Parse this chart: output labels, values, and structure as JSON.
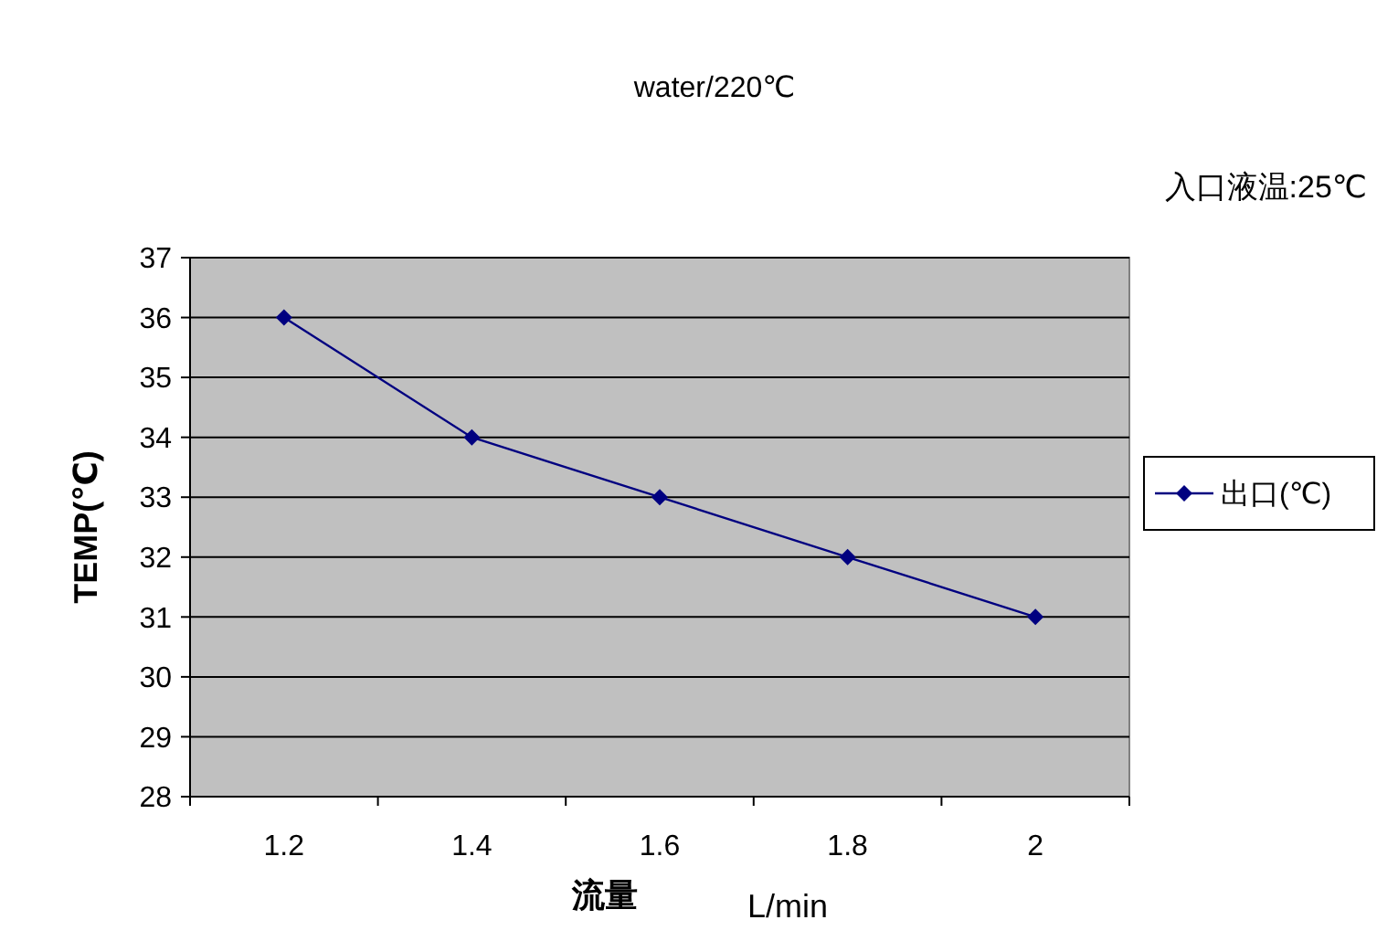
{
  "chart_data": {
    "type": "line",
    "title": "water/220℃",
    "annotations": [
      "入口液温:25℃",
      "L/min"
    ],
    "xlabel": "流量",
    "ylabel": "TEMP(℃)",
    "categories": [
      "1.2",
      "1.4",
      "1.6",
      "1.8",
      "2"
    ],
    "series": [
      {
        "name": "出口(℃)",
        "color": "#000080",
        "values": [
          36,
          34,
          33,
          32,
          31
        ]
      }
    ],
    "ylim": [
      28,
      37
    ],
    "yticks": [
      28,
      29,
      30,
      31,
      32,
      33,
      34,
      35,
      36,
      37
    ],
    "grid": "y",
    "legend": "right",
    "marker": "diamond",
    "line_style": "solid"
  }
}
